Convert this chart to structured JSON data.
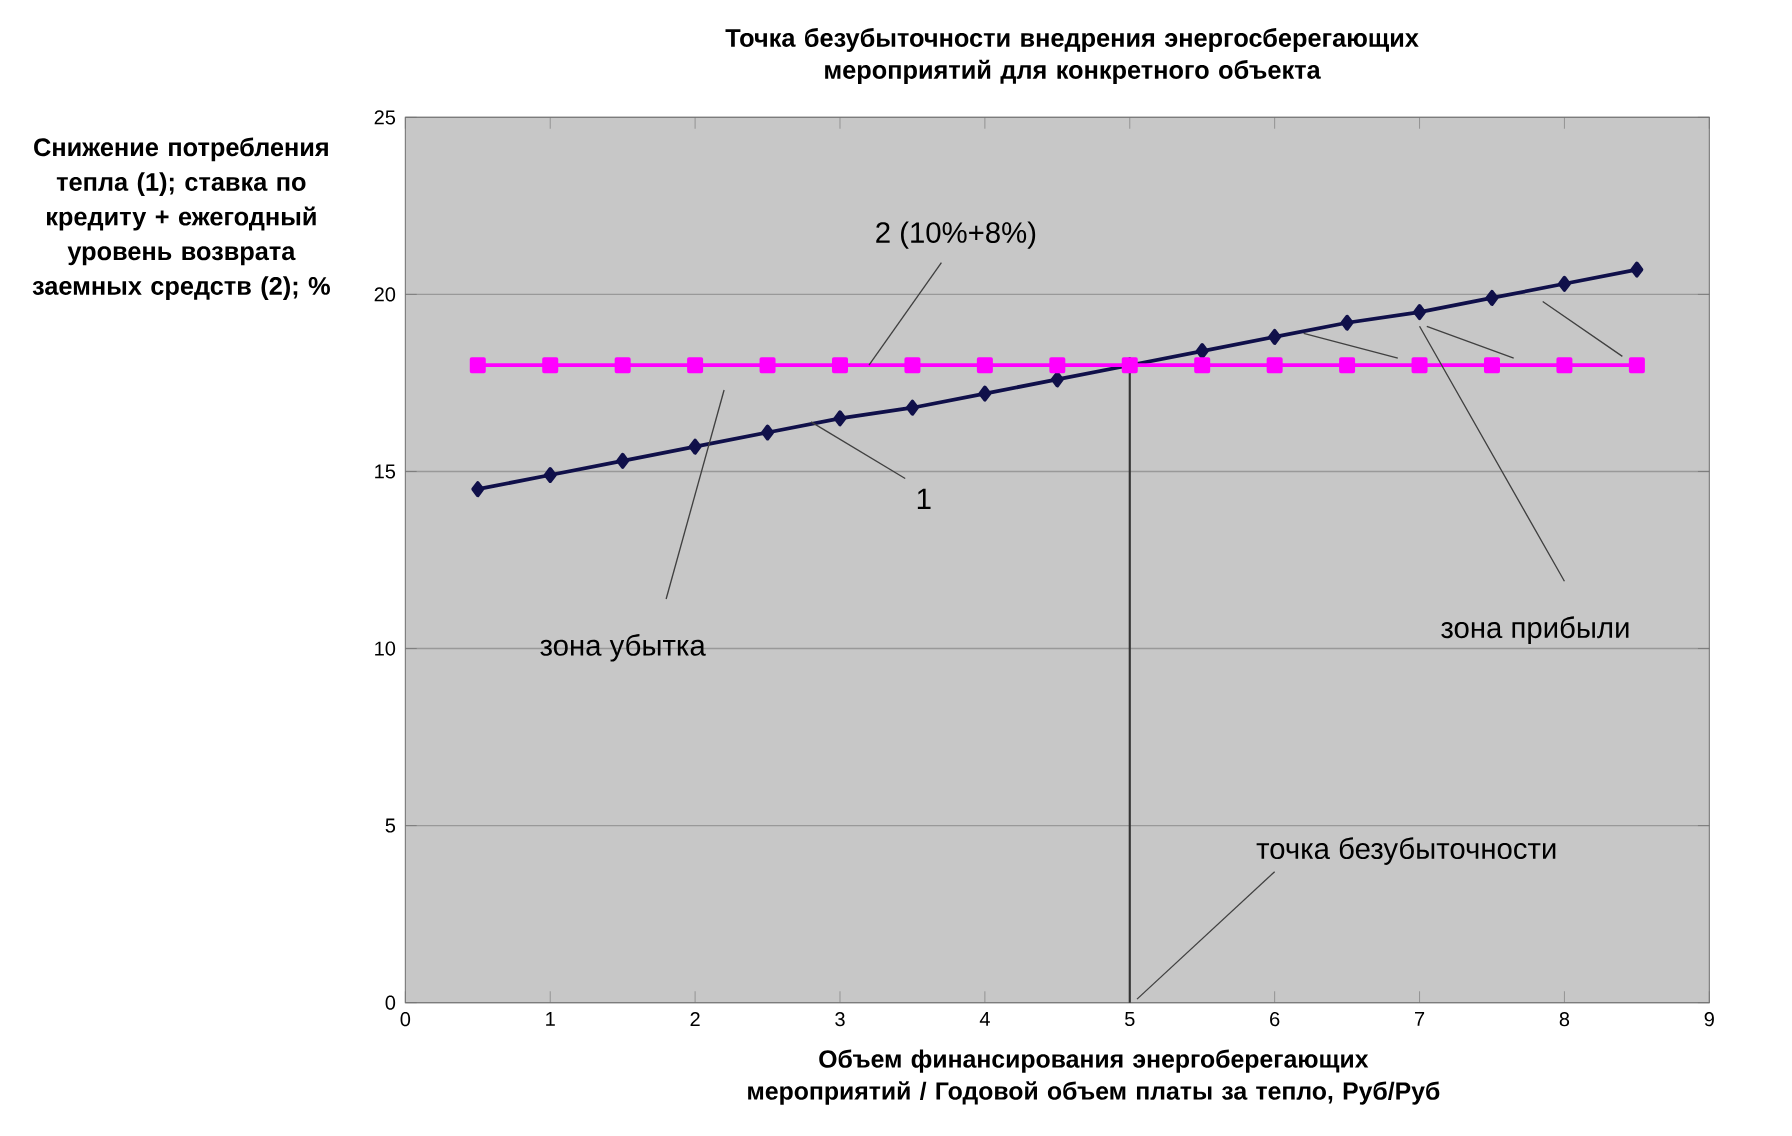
{
  "chart_data": {
    "type": "line",
    "title": "Точка безубыточности внедрения энергосберегающих мероприятий для конкретного объекта",
    "xlabel": "Объем финансирования энергоберегающих мероприятий / Годовой объем платы за тепло, Руб/Руб",
    "ylabel": "Снижение потребления тепла (1); ставка по кредиту + ежегодный уровень возврата заемных средств (2); %",
    "x": [
      0.5,
      1,
      1.5,
      2,
      2.5,
      3,
      3.5,
      4,
      4.5,
      5,
      5.5,
      6,
      6.5,
      7,
      7.5,
      8,
      8.5
    ],
    "series": [
      {
        "color": "#10104a",
        "marker": "diamond",
        "values": [
          14.5,
          14.9,
          15.3,
          15.7,
          16.1,
          16.5,
          16.8,
          17.2,
          17.6,
          18.0,
          18.4,
          18.8,
          19.2,
          19.5,
          19.9,
          20.3,
          20.7
        ]
      },
      {
        "color": "#ff00ff",
        "marker": "square",
        "values": [
          18,
          18,
          18,
          18,
          18,
          18,
          18,
          18,
          18,
          18,
          18,
          18,
          18,
          18,
          18,
          18,
          18
        ]
      }
    ],
    "xlim": [
      0,
      9
    ],
    "ylim": [
      0,
      25
    ],
    "xticks": [
      0,
      1,
      2,
      3,
      4,
      5,
      6,
      7,
      8,
      9
    ],
    "yticks": [
      0,
      5,
      10,
      15,
      20,
      25
    ],
    "grid": "y",
    "line_style": "solid",
    "ref_lines": [
      {
        "axis": "x",
        "value": 5,
        "label": "точка безубыточности",
        "color": "#333333"
      }
    ],
    "annotations": [
      {
        "text": "2 (10%+8%)",
        "x": 3.2,
        "y": 18
      },
      {
        "text": "1",
        "x": 2.8,
        "y": 16.4
      },
      "зона убытка",
      "зона прибыли"
    ]
  }
}
